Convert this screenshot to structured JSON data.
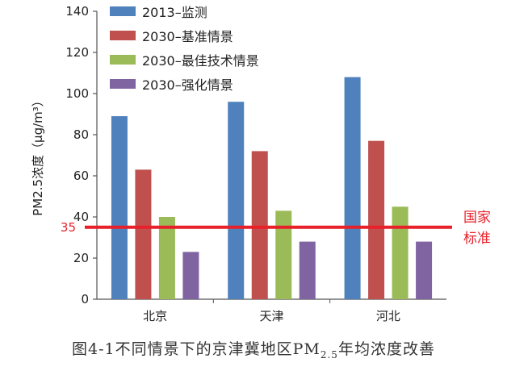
{
  "chart_data": {
    "type": "bar",
    "categories": [
      "北京",
      "天津",
      "河北"
    ],
    "series": [
      {
        "name": "2013–监测",
        "color": "#4f81bd",
        "values": [
          89,
          96,
          108
        ]
      },
      {
        "name": "2030–基准情景",
        "color": "#c0504d",
        "values": [
          63,
          72,
          77
        ]
      },
      {
        "name": "2030–最佳技术情景",
        "color": "#9bbb59",
        "values": [
          40,
          43,
          45
        ]
      },
      {
        "name": "2030–强化情景",
        "color": "#8064a2",
        "values": [
          23,
          28,
          28
        ]
      }
    ],
    "ylabel": "PM2.5浓度（μg/m³）",
    "ylim": [
      0,
      140
    ],
    "yticks": [
      0,
      20,
      40,
      60,
      80,
      100,
      120,
      140
    ],
    "reference_line": {
      "value": 35,
      "value_label": "35",
      "label_line1": "国家",
      "label_line2": "标准",
      "color": "#e8202a"
    },
    "legend_placement": "top-left",
    "grid": false
  },
  "caption": {
    "prefix": "图4-1不同情景下的京津冀地区PM",
    "subscript": "2.5",
    "suffix": "年均浓度改善"
  }
}
